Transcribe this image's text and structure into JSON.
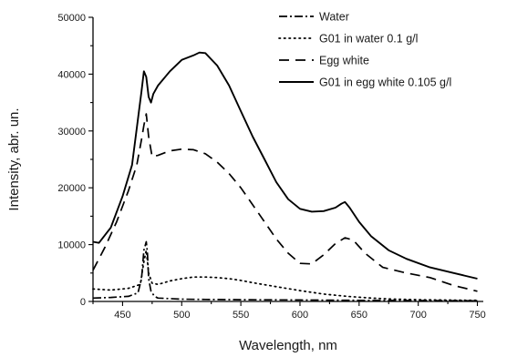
{
  "chart_data": {
    "type": "line",
    "xlabel": "Wavelength, nm",
    "ylabel": "Intensity, abr. un.",
    "xlim": [
      425,
      755
    ],
    "ylim": [
      0,
      50000
    ],
    "xticks": [
      450,
      500,
      550,
      600,
      650,
      700,
      750
    ],
    "yticks": [
      0,
      10000,
      20000,
      30000,
      40000,
      50000
    ],
    "grid": false,
    "legend_position": "top-right",
    "series": [
      {
        "name": "Water",
        "style": "dashdot",
        "color": "#000000",
        "x": [
          425,
          440,
          455,
          463,
          466,
          468,
          470,
          471,
          472,
          474,
          477,
          480,
          490,
          500,
          520,
          550,
          600,
          650,
          700,
          750
        ],
        "y": [
          600,
          700,
          900,
          1500,
          4000,
          9000,
          10500,
          8500,
          4000,
          1800,
          900,
          600,
          500,
          400,
          350,
          300,
          250,
          200,
          150,
          120
        ]
      },
      {
        "name": "G01 in water 0.1 g/l",
        "style": "dotted",
        "color": "#000000",
        "x": [
          425,
          440,
          455,
          465,
          468,
          470,
          472,
          475,
          480,
          490,
          500,
          510,
          520,
          530,
          540,
          550,
          560,
          580,
          600,
          620,
          640,
          660,
          680,
          700,
          720,
          750
        ],
        "y": [
          2200,
          2000,
          2300,
          3000,
          7000,
          9000,
          5000,
          3200,
          3000,
          3600,
          4000,
          4300,
          4300,
          4200,
          4000,
          3700,
          3300,
          2600,
          1900,
          1300,
          900,
          600,
          400,
          300,
          250,
          200
        ]
      },
      {
        "name": "Egg white",
        "style": "dashed",
        "color": "#000000",
        "x": [
          425,
          435,
          445,
          455,
          462,
          466,
          468,
          470,
          472,
          475,
          480,
          490,
          500,
          510,
          520,
          530,
          540,
          550,
          560,
          570,
          580,
          590,
          600,
          610,
          620,
          630,
          638,
          645,
          655,
          670,
          690,
          710,
          730,
          750
        ],
        "y": [
          5500,
          9500,
          14000,
          19500,
          24000,
          28500,
          31000,
          33000,
          29000,
          25500,
          25700,
          26500,
          26800,
          26700,
          26000,
          24500,
          22500,
          20000,
          17000,
          14000,
          11000,
          8500,
          6700,
          6600,
          8200,
          10200,
          11200,
          10800,
          8500,
          6000,
          5000,
          4200,
          2800,
          1800
        ]
      },
      {
        "name": "G01 in egg white 0.105 g/l",
        "style": "solid",
        "color": "#000000",
        "x": [
          425,
          430,
          440,
          450,
          458,
          462,
          466,
          468,
          470,
          472,
          474,
          476,
          480,
          490,
          500,
          510,
          515,
          520,
          530,
          540,
          550,
          560,
          570,
          580,
          590,
          600,
          610,
          620,
          630,
          635,
          638,
          642,
          650,
          660,
          675,
          690,
          710,
          730,
          750
        ],
        "y": [
          10500,
          10300,
          13000,
          18500,
          24000,
          30500,
          37000,
          40500,
          39500,
          36000,
          35000,
          36500,
          38000,
          40500,
          42500,
          43300,
          43800,
          43700,
          41500,
          38000,
          33500,
          29000,
          25000,
          21000,
          18000,
          16300,
          15800,
          15900,
          16500,
          17200,
          17500,
          16500,
          14000,
          11500,
          9000,
          7500,
          6000,
          5000,
          4000
        ]
      }
    ]
  }
}
